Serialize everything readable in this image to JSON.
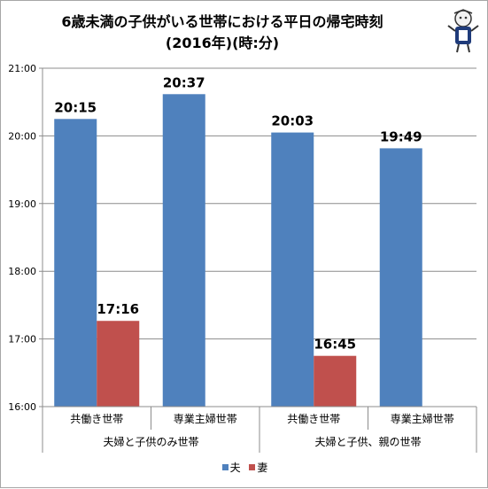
{
  "chart_data": {
    "type": "bar",
    "title_line1": "6歳未満の子供がいる世帯における平日の帰宅時刻",
    "title_line2": "(2016年)(時:分)",
    "groups": [
      {
        "label": "夫婦と子供のみ世帯",
        "categories": [
          "共働き世帯",
          "専業主婦世帯"
        ]
      },
      {
        "label": "夫婦と子供、親の世帯",
        "categories": [
          "共働き世帯",
          "専業主婦世帯"
        ]
      }
    ],
    "categories": [
      "共働き世帯",
      "専業主婦世帯",
      "共働き世帯",
      "専業主婦世帯"
    ],
    "series": [
      {
        "name": "夫",
        "color": "#4f81bd",
        "values": [
          "20:15",
          "20:37",
          "20:03",
          "19:49"
        ]
      },
      {
        "name": "妻",
        "color": "#c0504d",
        "values": [
          "17:16",
          null,
          "16:45",
          null
        ]
      }
    ],
    "y_ticks": [
      "16:00",
      "17:00",
      "18:00",
      "19:00",
      "20:00",
      "21:00"
    ],
    "ylim": [
      "16:00",
      "21:00"
    ],
    "grid": true,
    "legend_position": "bottom"
  }
}
